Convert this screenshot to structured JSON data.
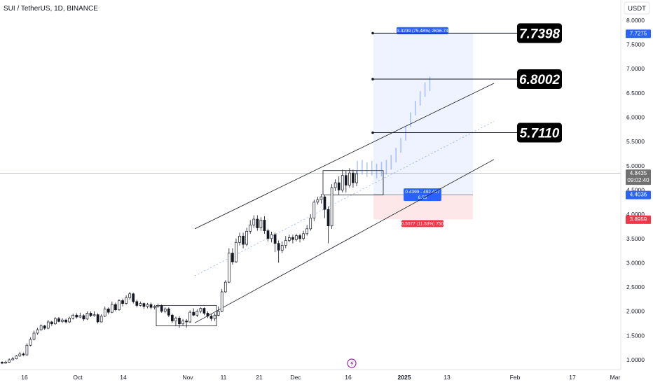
{
  "header": {
    "title": "SUI / TetherUS, 1D, BINANCE",
    "currency": "USDT"
  },
  "chart_data": {
    "type": "candlestick",
    "symbol": "SUI / TetherUS",
    "interval": "1D",
    "exchange": "BINANCE",
    "ylim": [
      0.88,
      8.05
    ],
    "yticks": [
      "1.0000",
      "1.5000",
      "2.0000",
      "2.5000",
      "3.0000",
      "3.5000",
      "4.0000",
      "4.5000",
      "5.0000",
      "5.5000",
      "6.0000",
      "6.5000",
      "7.0000",
      "7.5000",
      "8.0000"
    ],
    "xticks": [
      "16",
      "Oct",
      "14",
      "Nov",
      "11",
      "21",
      "Dec",
      "16",
      "2025",
      "13",
      "Feb",
      "17",
      "Mar"
    ],
    "candles": [
      [
        0.95,
        0.93,
        0.97,
        0.91
      ],
      [
        0.93,
        0.95,
        0.98,
        0.92
      ],
      [
        0.95,
        1.0,
        1.03,
        0.94
      ],
      [
        1.0,
        1.02,
        1.06,
        0.99
      ],
      [
        1.02,
        1.08,
        1.1,
        1.01
      ],
      [
        1.08,
        1.12,
        1.16,
        1.06
      ],
      [
        1.12,
        1.1,
        1.15,
        1.08
      ],
      [
        1.1,
        1.3,
        1.34,
        1.09
      ],
      [
        1.3,
        1.42,
        1.46,
        1.28
      ],
      [
        1.42,
        1.55,
        1.6,
        1.4
      ],
      [
        1.55,
        1.62,
        1.66,
        1.52
      ],
      [
        1.62,
        1.7,
        1.73,
        1.6
      ],
      [
        1.7,
        1.65,
        1.72,
        1.62
      ],
      [
        1.65,
        1.78,
        1.82,
        1.63
      ],
      [
        1.78,
        1.74,
        1.8,
        1.7
      ],
      [
        1.74,
        1.85,
        1.88,
        1.72
      ],
      [
        1.85,
        1.79,
        1.88,
        1.77
      ],
      [
        1.79,
        1.82,
        1.86,
        1.76
      ],
      [
        1.82,
        1.78,
        1.85,
        1.75
      ],
      [
        1.78,
        1.86,
        1.89,
        1.76
      ],
      [
        1.86,
        1.92,
        1.95,
        1.83
      ],
      [
        1.92,
        1.88,
        1.96,
        1.85
      ],
      [
        1.88,
        1.91,
        1.97,
        1.86
      ],
      [
        1.91,
        1.84,
        1.94,
        1.8
      ],
      [
        1.84,
        1.96,
        2.0,
        1.82
      ],
      [
        1.96,
        1.91,
        2.0,
        1.88
      ],
      [
        1.91,
        1.93,
        2.0,
        1.89
      ],
      [
        1.93,
        1.78,
        1.96,
        1.75
      ],
      [
        1.78,
        1.9,
        1.94,
        1.77
      ],
      [
        1.9,
        2.05,
        2.1,
        1.88
      ],
      [
        2.05,
        1.98,
        2.08,
        1.94
      ],
      [
        1.98,
        2.14,
        2.2,
        1.96
      ],
      [
        2.14,
        2.03,
        2.18,
        2.0
      ],
      [
        2.03,
        2.22,
        2.25,
        2.01
      ],
      [
        2.22,
        2.16,
        2.26,
        2.1
      ],
      [
        2.16,
        2.28,
        2.33,
        2.14
      ],
      [
        2.28,
        2.36,
        2.4,
        2.24
      ],
      [
        2.36,
        2.2,
        2.38,
        2.16
      ],
      [
        2.2,
        2.12,
        2.24,
        2.08
      ],
      [
        2.12,
        2.16,
        2.2,
        2.1
      ],
      [
        2.16,
        2.1,
        2.18,
        2.05
      ],
      [
        2.1,
        2.14,
        2.17,
        2.06
      ],
      [
        2.14,
        2.08,
        2.18,
        2.04
      ],
      [
        2.08,
        2.1,
        2.13,
        2.04
      ],
      [
        2.1,
        2.12,
        2.16,
        2.07
      ],
      [
        2.12,
        2.0,
        2.14,
        1.97
      ],
      [
        2.0,
        2.05,
        2.08,
        1.96
      ],
      [
        2.05,
        1.92,
        2.08,
        1.88
      ],
      [
        1.92,
        1.8,
        1.95,
        1.76
      ],
      [
        1.8,
        1.86,
        1.89,
        1.7
      ],
      [
        1.86,
        1.74,
        1.9,
        1.66
      ],
      [
        1.74,
        1.8,
        1.84,
        1.7
      ],
      [
        1.8,
        1.78,
        1.84,
        1.66
      ],
      [
        1.78,
        1.98,
        2.02,
        1.76
      ],
      [
        1.98,
        1.92,
        2.06,
        1.9
      ],
      [
        1.92,
        2.0,
        2.04,
        1.88
      ],
      [
        2.0,
        2.06,
        2.08,
        1.96
      ],
      [
        2.06,
        1.96,
        2.08,
        1.92
      ],
      [
        1.96,
        1.9,
        2.0,
        1.86
      ],
      [
        1.9,
        1.85,
        1.94,
        1.8
      ],
      [
        1.85,
        1.92,
        1.96,
        1.8
      ],
      [
        1.92,
        2.0,
        2.1,
        1.9
      ],
      [
        2.0,
        2.4,
        2.46,
        1.98
      ],
      [
        2.4,
        2.6,
        2.64,
        2.38
      ],
      [
        2.6,
        3.2,
        3.3,
        2.58
      ],
      [
        3.2,
        3.02,
        3.3,
        2.96
      ],
      [
        3.02,
        3.42,
        3.5,
        3.0
      ],
      [
        3.42,
        3.55,
        3.62,
        3.36
      ],
      [
        3.55,
        3.38,
        3.62,
        3.3
      ],
      [
        3.38,
        3.65,
        3.72,
        3.34
      ],
      [
        3.65,
        3.78,
        3.88,
        3.6
      ],
      [
        3.78,
        3.9,
        3.98,
        3.72
      ],
      [
        3.9,
        3.72,
        3.98,
        3.66
      ],
      [
        3.72,
        3.88,
        3.94,
        3.66
      ],
      [
        3.88,
        3.66,
        3.96,
        3.6
      ],
      [
        3.66,
        3.5,
        3.7,
        3.44
      ],
      [
        3.5,
        3.58,
        3.64,
        3.42
      ],
      [
        3.58,
        3.4,
        3.62,
        3.22
      ],
      [
        3.4,
        3.26,
        3.46,
        3.0
      ],
      [
        3.26,
        3.36,
        3.44,
        3.2
      ],
      [
        3.36,
        3.46,
        3.55,
        3.3
      ],
      [
        3.46,
        3.52,
        3.58,
        3.42
      ],
      [
        3.52,
        3.48,
        3.58,
        3.4
      ],
      [
        3.48,
        3.56,
        3.6,
        3.44
      ],
      [
        3.56,
        3.5,
        3.6,
        3.42
      ],
      [
        3.5,
        3.6,
        3.66,
        3.46
      ],
      [
        3.6,
        3.7,
        3.78,
        3.56
      ],
      [
        3.7,
        3.92,
        4.0,
        3.66
      ],
      [
        3.92,
        4.25,
        4.3,
        3.86
      ],
      [
        4.25,
        4.3,
        4.36,
        4.2
      ],
      [
        4.3,
        4.36,
        4.42,
        4.22
      ],
      [
        4.36,
        4.1,
        4.4,
        3.92
      ],
      [
        4.1,
        3.76,
        4.16,
        3.4
      ],
      [
        3.76,
        4.55,
        4.62,
        3.7
      ],
      [
        4.55,
        4.65,
        4.72,
        4.48
      ],
      [
        4.65,
        4.5,
        4.78,
        4.4
      ],
      [
        4.5,
        4.8,
        4.92,
        4.45
      ],
      [
        4.8,
        4.6,
        4.9,
        4.45
      ],
      [
        4.6,
        4.85,
        4.95,
        4.55
      ],
      [
        4.85,
        4.65,
        4.92,
        4.55
      ],
      [
        4.65,
        4.84,
        4.9,
        4.58
      ]
    ],
    "last_price": {
      "value": "4.8435",
      "countdown": "09:02:40"
    },
    "price_tags": [
      {
        "value": "7.7275",
        "color": "#2962ff"
      },
      {
        "value": "4.4036",
        "color": "#2962ff"
      },
      {
        "value": "3.8959",
        "color": "#f23645"
      }
    ],
    "targets": [
      "7.7398",
      "6.8002",
      "5.7110"
    ],
    "position": {
      "entry": 4.4036,
      "target": 7.7275,
      "stop": 3.8959,
      "target_label": "3.3239 (75.48%) 2636.74",
      "entry_label": [
        "0.4399 - 492.417",
        "6.55"
      ],
      "stop_label": "0.5077 (11.53%) 750"
    },
    "channel": {
      "upper": [
        [
          3.7,
          6.7
        ]
      ],
      "lower": [
        [
          1.76,
          5.13
        ]
      ]
    },
    "projection_path": [
      4.98,
      5.0,
      4.95,
      4.98,
      4.92,
      4.96,
      5.0,
      5.1,
      5.25,
      5.45,
      5.7,
      5.98,
      6.22,
      6.42,
      6.6,
      6.72
    ]
  }
}
